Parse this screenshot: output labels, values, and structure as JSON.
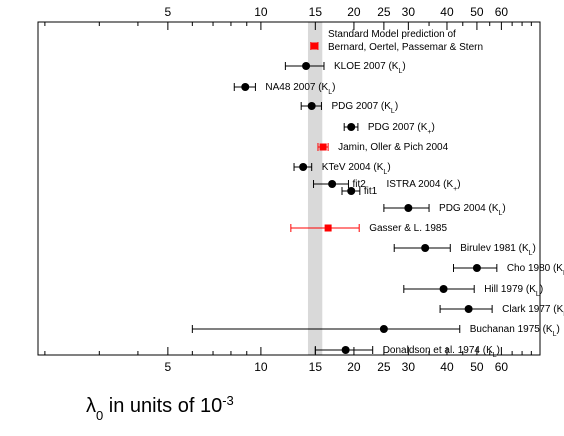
{
  "chart_data": {
    "type": "scatter",
    "title": "",
    "xlabel": "λ0 in units of 10-3",
    "xlabel_parts": {
      "lambda": "λ",
      "lambda_sub": "0",
      "text": " in units of 10",
      "sup": "-3"
    },
    "xscale": "log",
    "xlim": [
      1.9,
      80
    ],
    "xticks": [
      5,
      10,
      15,
      20,
      25,
      30,
      40,
      50,
      60
    ],
    "xtick_labels": [
      "5",
      "10",
      "15",
      "20",
      "25",
      "30",
      "40",
      "50",
      "60"
    ],
    "band": {
      "from": 14.2,
      "to": 15.8,
      "color": "#d9d9d9"
    },
    "grid": false,
    "legend": "none",
    "colors": {
      "black": "#000000",
      "red": "#ff0000"
    },
    "points": [
      {
        "label": "Standard Model prediction of",
        "label2": "Bernard, Oertel, Passemar & Stern",
        "sub": "",
        "tail": "",
        "x": 14.9,
        "lo": 14.5,
        "hi": 15.3,
        "color": "#ff0000",
        "marker": "square"
      },
      {
        "label": "KLOE 2007 (K",
        "sub": "L",
        "tail": ")",
        "x": 14.0,
        "lo": 12.0,
        "hi": 16.0,
        "color": "#000000",
        "marker": "circle"
      },
      {
        "label": "NA48 2007 (K",
        "sub": "L",
        "tail": ")",
        "x": 8.9,
        "lo": 8.2,
        "hi": 9.6,
        "color": "#000000",
        "marker": "circle"
      },
      {
        "label": "PDG 2007 (K",
        "sub": "L",
        "tail": ")",
        "x": 14.6,
        "lo": 13.5,
        "hi": 15.7,
        "color": "#000000",
        "marker": "circle"
      },
      {
        "label": "PDG 2007 (K",
        "sub": "+",
        "tail": ")",
        "x": 19.6,
        "lo": 18.6,
        "hi": 20.6,
        "color": "#000000",
        "marker": "circle"
      },
      {
        "label": "Jamin, Oller & Pich 2004",
        "sub": "",
        "tail": "",
        "x": 15.9,
        "lo": 15.3,
        "hi": 16.5,
        "color": "#ff0000",
        "marker": "square"
      },
      {
        "label": "KTeV 2004 (K",
        "sub": "L",
        "tail": ")",
        "x": 13.7,
        "lo": 12.8,
        "hi": 14.6,
        "color": "#000000",
        "marker": "circle"
      },
      {
        "label": "ISTRA 2004 (K",
        "sub": "+",
        "tail": ")",
        "x": 17.0,
        "lo": 14.8,
        "hi": 19.2,
        "color": "#000000",
        "marker": "circle",
        "tag": "fit2"
      },
      {
        "label": "",
        "sub": "",
        "tail": "",
        "x": 19.6,
        "lo": 18.3,
        "hi": 20.9,
        "color": "#000000",
        "marker": "circle",
        "tag": "fit1"
      },
      {
        "label": "PDG 2004 (K",
        "sub": "L",
        "tail": ")",
        "x": 30.0,
        "lo": 25.0,
        "hi": 35.0,
        "color": "#000000",
        "marker": "circle"
      },
      {
        "label": "Gasser & L. 1985",
        "sub": "",
        "tail": "",
        "x": 16.5,
        "lo": 12.5,
        "hi": 20.8,
        "color": "#ff0000",
        "marker": "square"
      },
      {
        "label": "Birulev 1981 (K",
        "sub": "L",
        "tail": ")",
        "x": 34.0,
        "lo": 27.0,
        "hi": 41.0,
        "color": "#000000",
        "marker": "circle"
      },
      {
        "label": "Cho 1980 (K",
        "sub": "L",
        "tail": ")",
        "x": 50.0,
        "lo": 42.0,
        "hi": 58.0,
        "color": "#000000",
        "marker": "circle"
      },
      {
        "label": "Hill 1979 (K",
        "sub": "L",
        "tail": ")",
        "x": 39.0,
        "lo": 29.0,
        "hi": 49.0,
        "color": "#000000",
        "marker": "circle"
      },
      {
        "label": "Clark 1977 (K",
        "sub": "L",
        "tail": ")",
        "x": 47.0,
        "lo": 38.0,
        "hi": 56.0,
        "color": "#000000",
        "marker": "circle"
      },
      {
        "label": "Buchanan 1975 (K",
        "sub": "L",
        "tail": ")",
        "x": 25.0,
        "lo": 6.0,
        "hi": 44.0,
        "color": "#000000",
        "marker": "circle"
      },
      {
        "label": "Donaldson et al. 1974 (K",
        "sub": "L",
        "tail": ")",
        "x": 18.8,
        "lo": 15.0,
        "hi": 23.0,
        "color": "#000000",
        "marker": "circle"
      }
    ]
  }
}
